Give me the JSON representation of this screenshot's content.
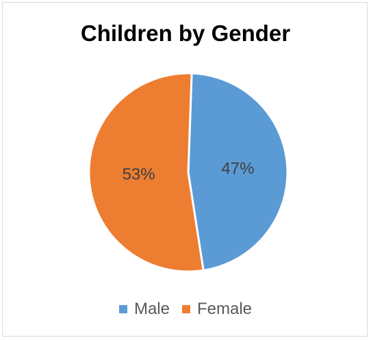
{
  "chart_data": {
    "type": "pie",
    "title": "Children by Gender",
    "slices": [
      {
        "label": "Male",
        "value": 47,
        "display": "47%",
        "color": "#5b9bd5"
      },
      {
        "label": "Female",
        "value": 53,
        "display": "53%",
        "color": "#ed7d31"
      }
    ],
    "legend_position": "bottom"
  }
}
